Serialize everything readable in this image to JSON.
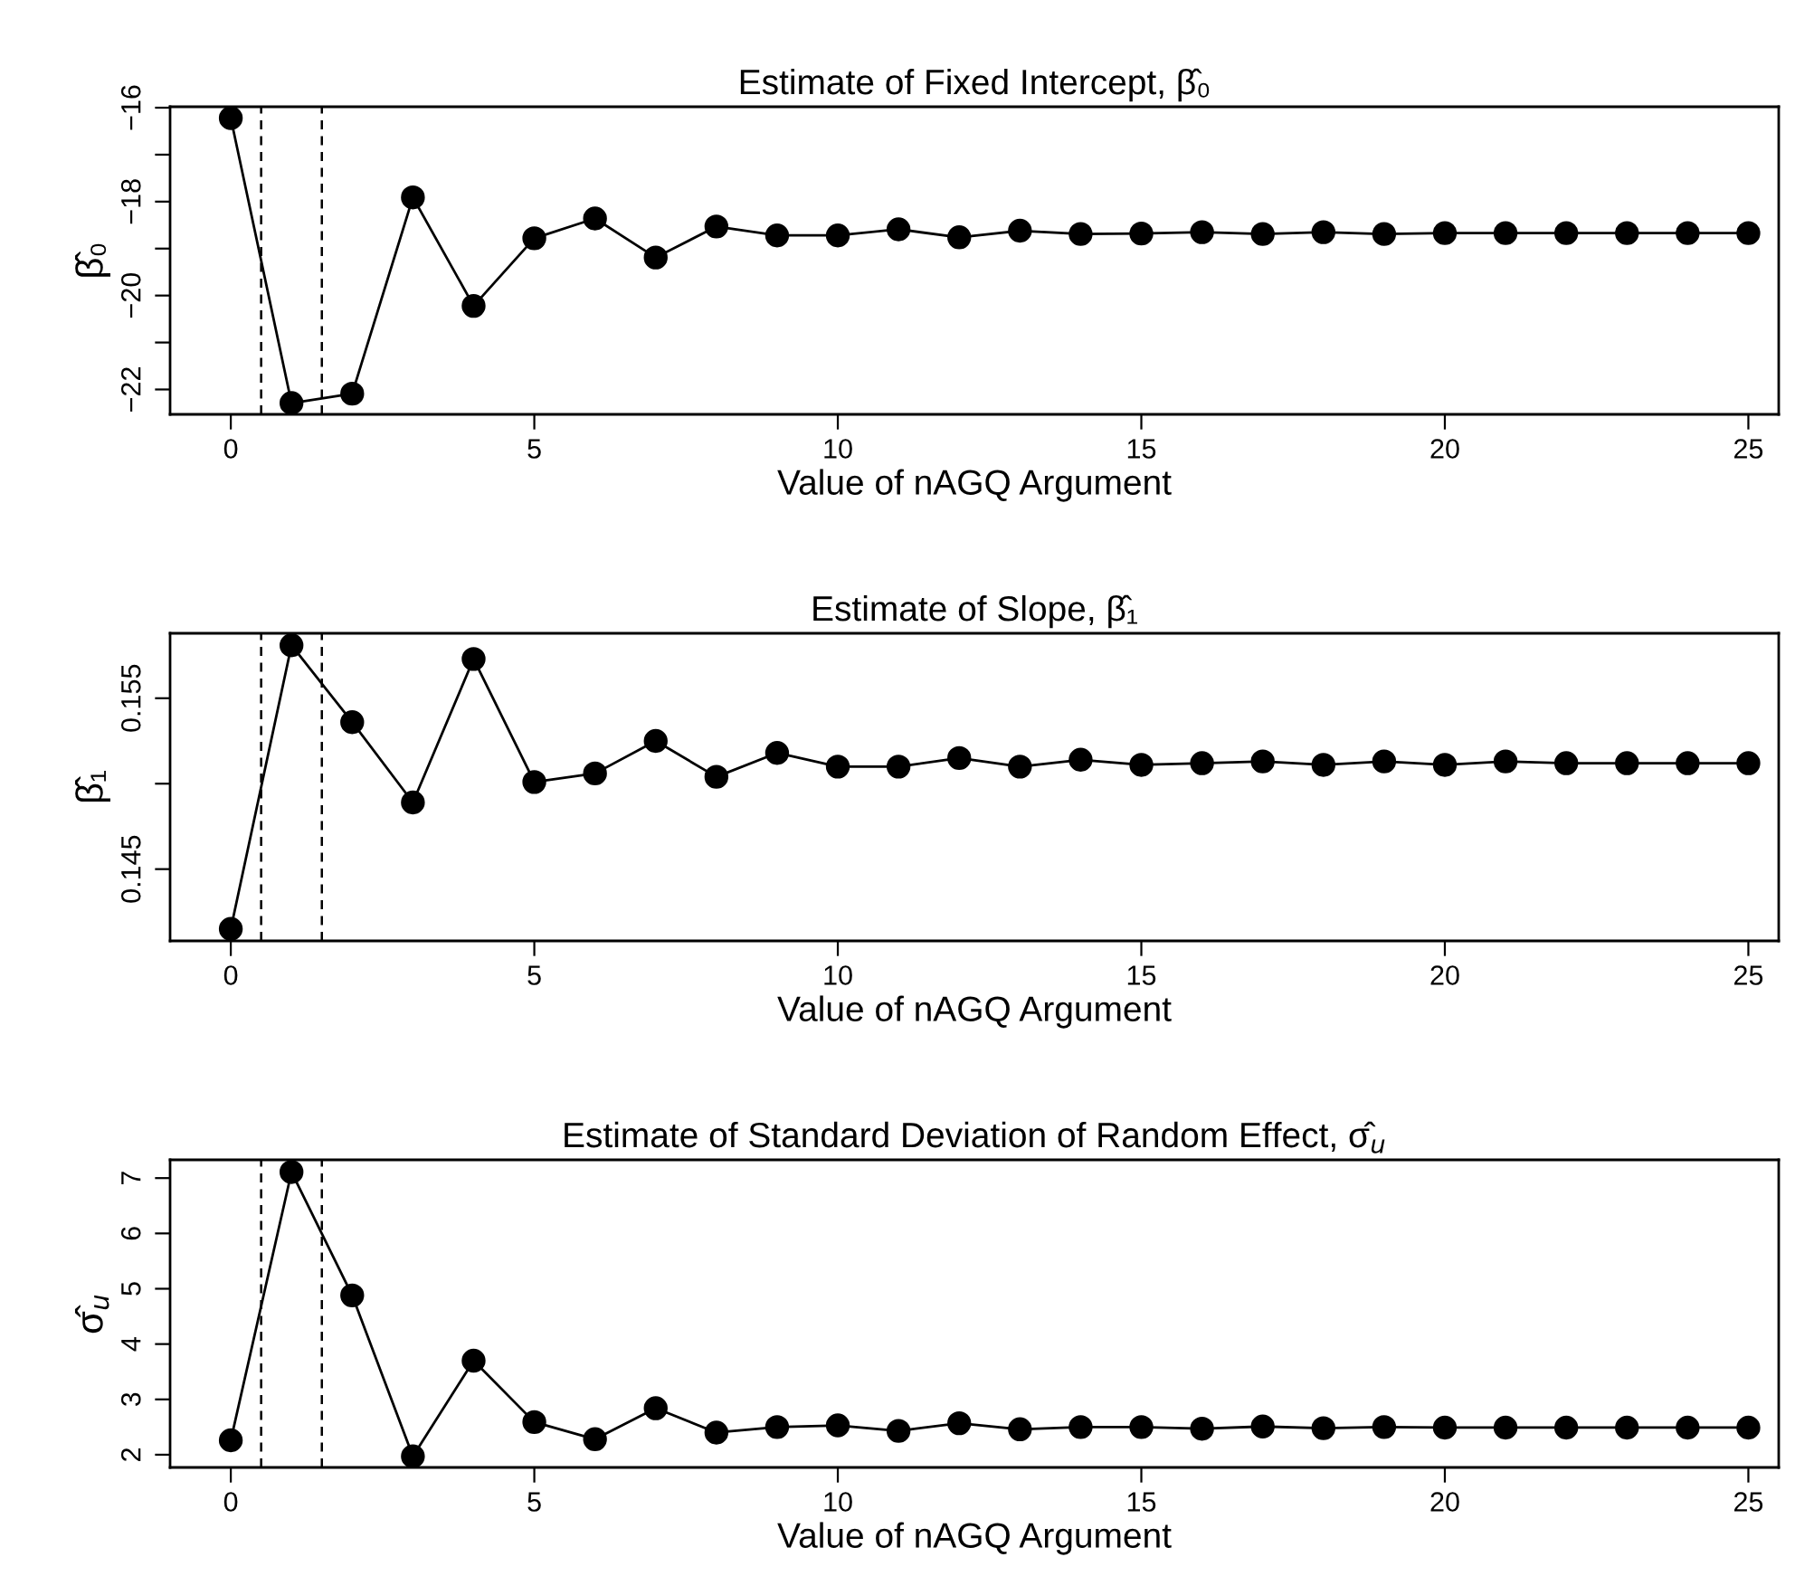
{
  "chart_data": [
    {
      "type": "line",
      "title": "Estimate of Fixed Intercept, β̂₀",
      "xlabel": "Value of nAGQ Argument",
      "ylabel": "β̂₀",
      "marker": "circle",
      "line_style": "solid",
      "grid": false,
      "legend": false,
      "x": [
        0,
        1,
        2,
        3,
        4,
        5,
        6,
        7,
        8,
        9,
        10,
        11,
        12,
        13,
        14,
        15,
        16,
        17,
        18,
        19,
        20,
        21,
        22,
        23,
        24,
        25
      ],
      "series": [
        {
          "color": "#000000",
          "values": [
            -16.22,
            -22.29,
            -22.09,
            -17.91,
            -20.22,
            -18.78,
            -18.36,
            -19.19,
            -18.53,
            -18.72,
            -18.72,
            -18.59,
            -18.76,
            -18.62,
            -18.69,
            -18.68,
            -18.65,
            -18.69,
            -18.65,
            -18.69,
            -18.67,
            -18.67,
            -18.67,
            -18.67,
            -18.67,
            -18.67
          ]
        }
      ],
      "xlim": [
        -1,
        25.5
      ],
      "xticks": [
        0,
        5,
        10,
        15,
        20,
        25
      ],
      "ylim": [
        -22.53,
        -15.98
      ],
      "yticks": [
        {
          "value": -22,
          "label": "−22"
        },
        {
          "value": -21,
          "label": null
        },
        {
          "value": -20,
          "label": "−20"
        },
        {
          "value": -19,
          "label": null
        },
        {
          "value": -18,
          "label": "−18"
        },
        {
          "value": -17,
          "label": null
        },
        {
          "value": -16,
          "label": "−16"
        }
      ],
      "ref_lines": [
        {
          "axis": "x",
          "value": 0.5,
          "color": "#000000",
          "line_style": "dashed"
        },
        {
          "axis": "x",
          "value": 1.5,
          "color": "#000000",
          "line_style": "dashed"
        }
      ]
    },
    {
      "type": "line",
      "title": "Estimate of Slope, β̂₁",
      "xlabel": "Value of nAGQ Argument",
      "ylabel": "β̂₁",
      "marker": "circle",
      "line_style": "solid",
      "grid": false,
      "legend": false,
      "x": [
        0,
        1,
        2,
        3,
        4,
        5,
        6,
        7,
        8,
        9,
        10,
        11,
        12,
        13,
        14,
        15,
        16,
        17,
        18,
        19,
        20,
        21,
        22,
        23,
        24,
        25
      ],
      "series": [
        {
          "color": "#000000",
          "values": [
            0.1415,
            0.1581,
            0.1536,
            0.1489,
            0.1573,
            0.1501,
            0.1506,
            0.1525,
            0.1504,
            0.1518,
            0.151,
            0.151,
            0.1515,
            0.151,
            0.1514,
            0.1511,
            0.1512,
            0.1513,
            0.1511,
            0.1513,
            0.1511,
            0.1513,
            0.1512,
            0.1512,
            0.1512,
            0.1512
          ]
        }
      ],
      "xlim": [
        -1,
        25.5
      ],
      "xticks": [
        0,
        5,
        10,
        15,
        20,
        25
      ],
      "ylim": [
        0.1408,
        0.1588
      ],
      "yticks": [
        0.145,
        {
          "value": 0.15,
          "label": null
        },
        0.155
      ],
      "ref_lines": [
        {
          "axis": "x",
          "value": 0.5,
          "color": "#000000",
          "line_style": "dashed"
        },
        {
          "axis": "x",
          "value": 1.5,
          "color": "#000000",
          "line_style": "dashed"
        }
      ]
    },
    {
      "type": "line",
      "title": "Estimate of Standard Deviation of Random Effect, σ̂$_{u}$",
      "xlabel": "Value of nAGQ Argument",
      "ylabel": "σ̂$_{u}$",
      "marker": "circle",
      "line_style": "solid",
      "grid": false,
      "legend": false,
      "x": [
        0,
        1,
        2,
        3,
        4,
        5,
        6,
        7,
        8,
        9,
        10,
        11,
        12,
        13,
        14,
        15,
        16,
        17,
        18,
        19,
        20,
        21,
        22,
        23,
        24,
        25
      ],
      "series": [
        {
          "color": "#000000",
          "values": [
            2.26,
            7.11,
            4.88,
            1.97,
            3.7,
            2.59,
            2.28,
            2.84,
            2.4,
            2.5,
            2.53,
            2.43,
            2.57,
            2.46,
            2.5,
            2.5,
            2.47,
            2.51,
            2.48,
            2.5,
            2.49,
            2.49,
            2.49,
            2.49,
            2.49,
            2.49
          ]
        }
      ],
      "xlim": [
        -1,
        25.5
      ],
      "xticks": [
        0,
        5,
        10,
        15,
        20,
        25
      ],
      "ylim": [
        1.77,
        7.33
      ],
      "yticks": [
        2,
        3,
        4,
        5,
        6,
        7
      ],
      "ref_lines": [
        {
          "axis": "x",
          "value": 0.5,
          "color": "#000000",
          "line_style": "dashed"
        },
        {
          "axis": "x",
          "value": 1.5,
          "color": "#000000",
          "line_style": "dashed"
        }
      ]
    }
  ]
}
